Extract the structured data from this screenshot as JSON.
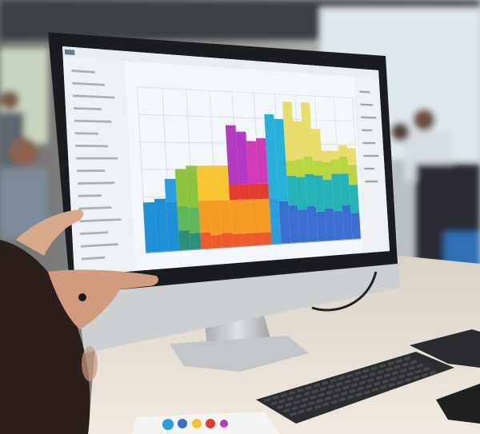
{
  "scene": {
    "screen_background": "#f4f7fa",
    "bezel_color": "#1b1c1f",
    "monitor_silver": "#cfd2d4",
    "desk_color": "#e4ddd2",
    "chart_palette": [
      "#1f8fd6",
      "#2a9fe0",
      "#3a6fd0",
      "#8cc43f",
      "#5fb65a",
      "#2e8f7a",
      "#f7c531",
      "#f59a24",
      "#ee5a2a",
      "#e23a2e",
      "#b43ac4",
      "#d23bb8",
      "#27b0d8",
      "#e8dd6a",
      "#b9d640",
      "#24b3b8"
    ]
  }
}
